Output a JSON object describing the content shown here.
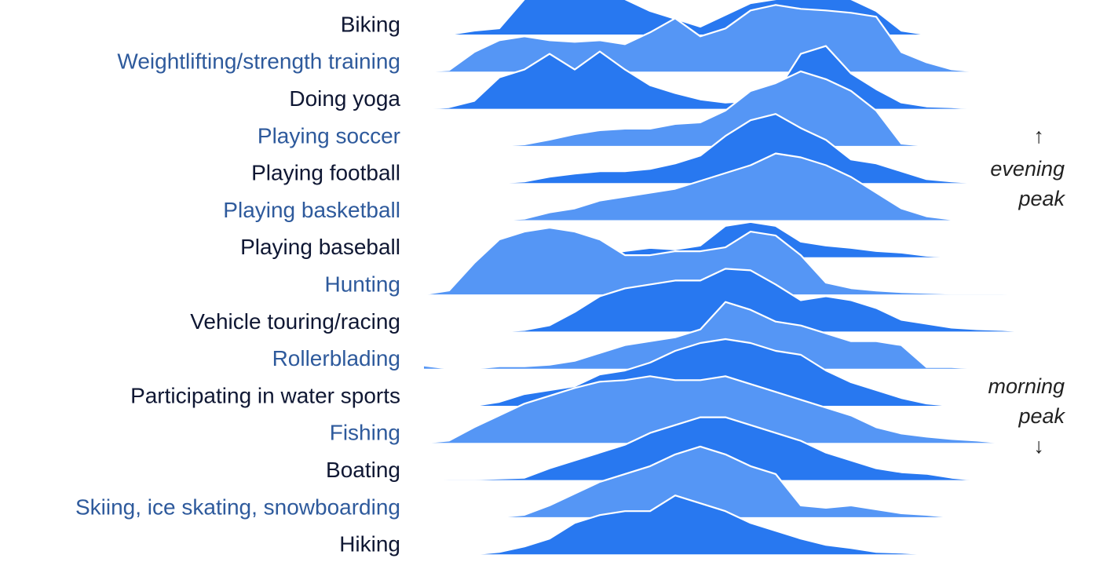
{
  "chart_data": {
    "type": "ridgeline",
    "series": [
      {
        "name": "Biking",
        "color": "#2878f0",
        "label_color": "#0f1733",
        "values": [
          0,
          0,
          5,
          8,
          45,
          50,
          50,
          50,
          45,
          30,
          20,
          10,
          25,
          40,
          45,
          48,
          48,
          45,
          30,
          5,
          0,
          0,
          0,
          0,
          0
        ]
      },
      {
        "name": "Weightlifting/strength training",
        "color": "#5596f5",
        "label_color": "#2e5a9c",
        "values": [
          0,
          2,
          25,
          40,
          45,
          40,
          38,
          40,
          35,
          50,
          68,
          45,
          55,
          78,
          85,
          80,
          78,
          75,
          70,
          25,
          12,
          3,
          0,
          0,
          0
        ]
      },
      {
        "name": "Doing yoga",
        "color": "#2878f0",
        "label_color": "#0f1733",
        "values": [
          0,
          2,
          10,
          40,
          50,
          70,
          50,
          73,
          50,
          30,
          20,
          12,
          8,
          10,
          20,
          70,
          80,
          45,
          25,
          8,
          3,
          2,
          0,
          0,
          0
        ]
      },
      {
        "name": "Playing soccer",
        "color": "#5596f5",
        "label_color": "#2e5a9c",
        "values": [
          0,
          0,
          0,
          0,
          2,
          8,
          15,
          20,
          22,
          22,
          28,
          30,
          45,
          70,
          80,
          95,
          85,
          70,
          45,
          3,
          0,
          0,
          0,
          0,
          0
        ]
      },
      {
        "name": "Playing football",
        "color": "#2878f0",
        "label_color": "#0f1733",
        "values": [
          0,
          0,
          0,
          0,
          2,
          8,
          12,
          15,
          15,
          18,
          25,
          35,
          60,
          80,
          88,
          70,
          55,
          30,
          25,
          15,
          5,
          2,
          0,
          0,
          0
        ]
      },
      {
        "name": "Playing basketball",
        "color": "#5596f5",
        "label_color": "#2e5a9c",
        "values": [
          0,
          0,
          0,
          0,
          2,
          10,
          15,
          25,
          30,
          35,
          40,
          50,
          60,
          70,
          85,
          80,
          70,
          55,
          35,
          15,
          5,
          1,
          0,
          0,
          0
        ]
      },
      {
        "name": "Playing baseball",
        "color": "#2878f0",
        "label_color": "#0f1733",
        "values": [
          0,
          0,
          0,
          0,
          0,
          0,
          0,
          3,
          8,
          12,
          10,
          15,
          40,
          45,
          40,
          20,
          15,
          12,
          8,
          6,
          2,
          0,
          0,
          0,
          0
        ]
      },
      {
        "name": "Hunting",
        "color": "#5596f5",
        "label_color": "#2e5a9c",
        "values": [
          0,
          5,
          40,
          70,
          80,
          85,
          80,
          70,
          50,
          50,
          55,
          55,
          60,
          80,
          75,
          50,
          15,
          8,
          5,
          3,
          2,
          1,
          1,
          1,
          0
        ]
      },
      {
        "name": "Vehicle touring/racing",
        "color": "#2878f0",
        "label_color": "#0f1733",
        "values": [
          0,
          0,
          0,
          0,
          2,
          8,
          25,
          45,
          55,
          60,
          65,
          65,
          80,
          78,
          60,
          40,
          45,
          40,
          30,
          15,
          10,
          5,
          3,
          2,
          0
        ]
      },
      {
        "name": "Rollerblading",
        "color": "#5596f5",
        "label_color": "#2e5a9c",
        "values": [
          4,
          0,
          0,
          3,
          3,
          5,
          10,
          20,
          30,
          35,
          40,
          50,
          85,
          75,
          60,
          55,
          45,
          35,
          35,
          30,
          2,
          2,
          0,
          0,
          0
        ]
      },
      {
        "name": "Participating in water sports",
        "color": "#2878f0",
        "label_color": "#0f1733",
        "values": [
          0,
          0,
          0,
          5,
          15,
          20,
          25,
          40,
          45,
          55,
          70,
          80,
          85,
          80,
          70,
          65,
          45,
          30,
          20,
          10,
          3,
          0,
          0,
          0,
          0
        ]
      },
      {
        "name": "Fishing",
        "color": "#5596f5",
        "label_color": "#2e5a9c",
        "values": [
          0,
          3,
          20,
          35,
          50,
          60,
          70,
          78,
          80,
          85,
          80,
          80,
          85,
          75,
          65,
          55,
          45,
          35,
          20,
          12,
          8,
          5,
          3,
          0,
          0
        ]
      },
      {
        "name": "Boating",
        "color": "#2878f0",
        "label_color": "#0f1733",
        "values": [
          0,
          1,
          1,
          2,
          3,
          15,
          25,
          35,
          45,
          60,
          70,
          80,
          80,
          70,
          60,
          50,
          35,
          25,
          15,
          10,
          8,
          3,
          0,
          0,
          0
        ]
      },
      {
        "name": "Skiing, ice skating, snowboarding",
        "color": "#5596f5",
        "label_color": "#2e5a9c",
        "values": [
          0,
          0,
          0,
          0,
          3,
          15,
          30,
          45,
          55,
          65,
          80,
          90,
          80,
          65,
          55,
          15,
          12,
          15,
          10,
          5,
          3,
          0,
          0,
          0,
          0
        ]
      },
      {
        "name": "Hiking",
        "color": "#2878f0",
        "label_color": "#0f1733",
        "values": [
          0,
          0,
          0,
          3,
          10,
          20,
          40,
          50,
          55,
          55,
          75,
          65,
          55,
          40,
          30,
          20,
          12,
          8,
          3,
          2,
          0,
          0,
          0,
          0,
          0
        ]
      }
    ],
    "annotations": [
      "↑",
      "evening",
      "peak",
      "morning",
      "peak",
      "↓"
    ]
  }
}
